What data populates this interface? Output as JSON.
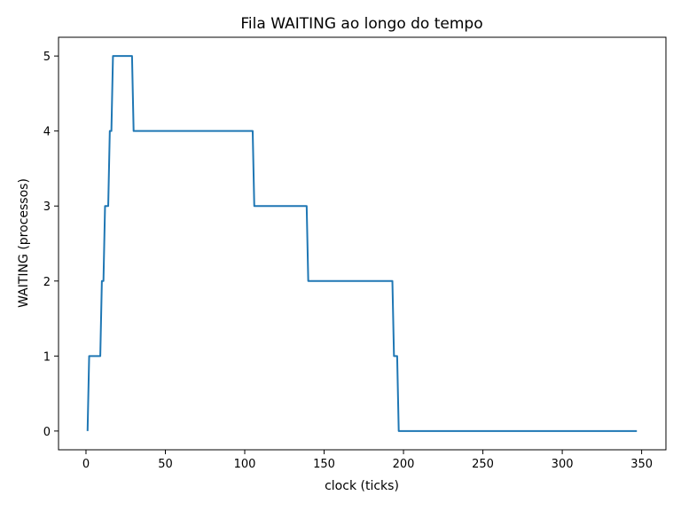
{
  "chart_data": {
    "type": "line",
    "title": "Fila WAITING ao longo do tempo",
    "xlabel": "clock (ticks)",
    "ylabel": "WAITING (processos)",
    "xlim": [
      -17.3,
      365.3
    ],
    "ylim": [
      -0.25,
      5.25
    ],
    "xticks": [
      0,
      50,
      100,
      150,
      200,
      250,
      300,
      350
    ],
    "yticks": [
      0,
      1,
      2,
      3,
      4,
      5
    ],
    "grid": false,
    "series": [
      {
        "color": "#1f77b4",
        "x": [
          1,
          2,
          9,
          10,
          11,
          12,
          13,
          14,
          15,
          16,
          17,
          18,
          19,
          20,
          21,
          22,
          23,
          24,
          25,
          26,
          27,
          28,
          29,
          30,
          31,
          32,
          33,
          34,
          35,
          36,
          37,
          38,
          39,
          40,
          41,
          42,
          43,
          44,
          45,
          46,
          47,
          48,
          49,
          50,
          51,
          52,
          53,
          54,
          55,
          56,
          57,
          58,
          59,
          60,
          61,
          62,
          63,
          64,
          65,
          66,
          67,
          68,
          69,
          70,
          71,
          72,
          73,
          74,
          75,
          76,
          77,
          78,
          79,
          80,
          81,
          82,
          83,
          84,
          85,
          86,
          87,
          88,
          89,
          90,
          91,
          92,
          93,
          94,
          95,
          96,
          97,
          98,
          99,
          100,
          101,
          102,
          103,
          104,
          105,
          106,
          139,
          140,
          193,
          194,
          196,
          197,
          198,
          347
        ],
        "y": [
          0,
          1,
          1,
          2,
          2,
          3,
          3,
          3,
          4,
          4,
          5,
          5,
          5,
          5,
          5,
          5,
          5,
          5,
          5,
          5,
          5,
          5,
          5,
          4,
          4,
          4,
          4,
          4,
          4,
          4,
          4,
          4,
          4,
          4,
          4,
          4,
          4,
          4,
          4,
          4,
          4,
          4,
          4,
          4,
          4,
          4,
          4,
          4,
          4,
          4,
          4,
          4,
          4,
          4,
          4,
          4,
          4,
          4,
          4,
          4,
          4,
          4,
          4,
          4,
          4,
          4,
          4,
          4,
          4,
          4,
          4,
          4,
          4,
          4,
          4,
          4,
          4,
          4,
          4,
          4,
          4,
          4,
          4,
          4,
          4,
          4,
          4,
          4,
          4,
          4,
          4,
          4,
          4,
          4,
          4,
          4,
          4,
          4,
          4,
          3,
          3,
          2,
          2,
          1,
          1,
          0,
          0,
          0
        ]
      }
    ]
  }
}
